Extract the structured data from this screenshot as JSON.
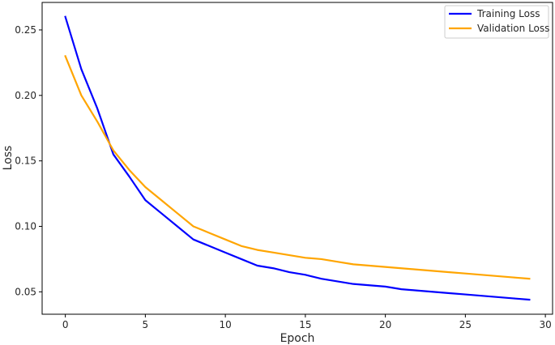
{
  "chart_data": {
    "type": "line",
    "title": "",
    "xlabel": "Epoch",
    "ylabel": "Loss",
    "xlim": [
      -1.45,
      30.45
    ],
    "ylim": [
      0.0329,
      0.271
    ],
    "xticks": [
      0,
      5,
      10,
      15,
      20,
      25,
      30
    ],
    "yticks": [
      0.05,
      0.1,
      0.15,
      0.2,
      0.25
    ],
    "ytick_labels": [
      "0.05",
      "0.10",
      "0.15",
      "0.20",
      "0.25"
    ],
    "grid": false,
    "legend_position": "top-right",
    "x": [
      0,
      1,
      2,
      3,
      4,
      5,
      6,
      7,
      8,
      9,
      10,
      11,
      12,
      13,
      14,
      15,
      16,
      17,
      18,
      19,
      20,
      21,
      22,
      23,
      24,
      25,
      26,
      27,
      28,
      29
    ],
    "series": [
      {
        "name": "Training Loss",
        "color": "#0000ff",
        "values": [
          0.26,
          0.22,
          0.19,
          0.155,
          0.138,
          0.12,
          0.11,
          0.1,
          0.09,
          0.085,
          0.08,
          0.075,
          0.07,
          0.068,
          0.065,
          0.063,
          0.06,
          0.058,
          0.056,
          0.055,
          0.054,
          0.052,
          0.051,
          0.05,
          0.049,
          0.048,
          0.047,
          0.046,
          0.045,
          0.044
        ]
      },
      {
        "name": "Validation Loss",
        "color": "#ffa500",
        "values": [
          0.23,
          0.2,
          0.18,
          0.158,
          0.143,
          0.13,
          0.12,
          0.11,
          0.1,
          0.095,
          0.09,
          0.085,
          0.082,
          0.08,
          0.078,
          0.076,
          0.075,
          0.073,
          0.071,
          0.07,
          0.069,
          0.068,
          0.067,
          0.066,
          0.065,
          0.064,
          0.063,
          0.062,
          0.061,
          0.06
        ]
      }
    ]
  }
}
